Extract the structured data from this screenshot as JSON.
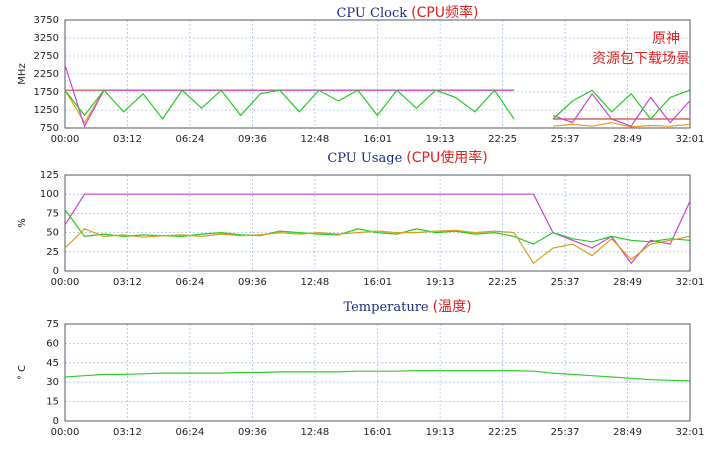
{
  "chart_data": [
    {
      "type": "line",
      "title": "CPU Clock",
      "title_note": "(CPU频率)",
      "y_label": "MHz",
      "annotations": [
        "原神",
        "资源包下载场景"
      ],
      "x": [
        0,
        1,
        2,
        3,
        4,
        5,
        6,
        7,
        8,
        9,
        10,
        11,
        12,
        13,
        14,
        15,
        16,
        17,
        18,
        19,
        20,
        21,
        22,
        23,
        24,
        25,
        26,
        27,
        28,
        29,
        30,
        31,
        32
      ],
      "xlim": [
        0,
        32.0167
      ],
      "xticks": [
        {
          "value": 0,
          "label": "00:00"
        },
        {
          "value": 3.2,
          "label": "03:12"
        },
        {
          "value": 6.4,
          "label": "06:24"
        },
        {
          "value": 9.6,
          "label": "09:36"
        },
        {
          "value": 12.8,
          "label": "12:48"
        },
        {
          "value": 16.0167,
          "label": "16:01"
        },
        {
          "value": 19.2167,
          "label": "19:13"
        },
        {
          "value": 22.4167,
          "label": "22:25"
        },
        {
          "value": 25.6167,
          "label": "25:37"
        },
        {
          "value": 28.8167,
          "label": "28:49"
        },
        {
          "value": 32.0167,
          "label": "32:01"
        }
      ],
      "ylim": [
        750,
        3750
      ],
      "yticks": [
        750,
        1250,
        1750,
        2250,
        2750,
        3250,
        3750
      ],
      "grid": true,
      "series": [
        {
          "color": "#c84a4a",
          "values": [
            1800,
            1800,
            1800,
            1800,
            1800,
            1800,
            1800,
            1800,
            1800,
            1800,
            1800,
            1800,
            1800,
            1800,
            1800,
            1800,
            1800,
            1800,
            1800,
            1800,
            1800,
            1800,
            1800,
            1800,
            null,
            1000,
            1000,
            1000,
            1000,
            1000,
            1000,
            1000,
            1000
          ]
        },
        {
          "color": "#e0a020",
          "values": [
            1800,
            900,
            1800,
            1800,
            1800,
            1800,
            1800,
            1800,
            1800,
            1800,
            1800,
            1800,
            1800,
            1800,
            1800,
            1800,
            1800,
            1800,
            1800,
            1800,
            1800,
            1800,
            1800,
            1800,
            null,
            800,
            850,
            800,
            900,
            780,
            820,
            800,
            850
          ]
        },
        {
          "color": "#cc44cc",
          "values": [
            2500,
            800,
            1800,
            1800,
            1800,
            1800,
            1800,
            1800,
            1800,
            1800,
            1800,
            1800,
            1800,
            1800,
            1800,
            1800,
            1800,
            1800,
            1800,
            1800,
            1800,
            1800,
            1800,
            1800,
            null,
            1100,
            900,
            1700,
            1000,
            800,
            1600,
            900,
            1500
          ]
        },
        {
          "color": "#22cc22",
          "values": [
            1800,
            1100,
            1800,
            1200,
            1700,
            1000,
            1800,
            1300,
            1800,
            1100,
            1700,
            1800,
            1200,
            1800,
            1500,
            1800,
            1100,
            1800,
            1300,
            1800,
            1600,
            1200,
            1800,
            1000,
            null,
            1000,
            1500,
            1800,
            1200,
            1700,
            1000,
            1600,
            1800
          ]
        }
      ]
    },
    {
      "type": "line",
      "title": "CPU Usage",
      "title_note": "(CPU使用率)",
      "y_label": "%",
      "x": [
        0,
        1,
        2,
        3,
        4,
        5,
        6,
        7,
        8,
        9,
        10,
        11,
        12,
        13,
        14,
        15,
        16,
        17,
        18,
        19,
        20,
        21,
        22,
        23,
        24,
        25,
        26,
        27,
        28,
        29,
        30,
        31,
        32
      ],
      "xlim": [
        0,
        32.0167
      ],
      "xticks": [
        {
          "value": 0,
          "label": "00:00"
        },
        {
          "value": 3.2,
          "label": "03:12"
        },
        {
          "value": 6.4,
          "label": "06:24"
        },
        {
          "value": 9.6,
          "label": "09:36"
        },
        {
          "value": 12.8,
          "label": "12:48"
        },
        {
          "value": 16.0167,
          "label": "16:01"
        },
        {
          "value": 19.2167,
          "label": "19:13"
        },
        {
          "value": 22.4167,
          "label": "22:25"
        },
        {
          "value": 25.6167,
          "label": "25:37"
        },
        {
          "value": 28.8167,
          "label": "28:49"
        },
        {
          "value": 32.0167,
          "label": "32:01"
        }
      ],
      "ylim": [
        0,
        125
      ],
      "yticks": [
        0,
        25,
        50,
        75,
        100,
        125
      ],
      "grid": true,
      "series": [
        {
          "color": "#cc44cc",
          "values": [
            60,
            100,
            100,
            100,
            100,
            100,
            100,
            100,
            100,
            100,
            100,
            100,
            100,
            100,
            100,
            100,
            100,
            100,
            100,
            100,
            100,
            100,
            100,
            100,
            100,
            50,
            40,
            30,
            45,
            10,
            40,
            35,
            90
          ]
        },
        {
          "color": "#22cc22",
          "values": [
            80,
            45,
            48,
            45,
            47,
            46,
            45,
            48,
            50,
            47,
            46,
            52,
            50,
            48,
            47,
            55,
            50,
            48,
            55,
            50,
            52,
            48,
            50,
            45,
            35,
            50,
            42,
            38,
            45,
            40,
            38,
            42,
            40
          ]
        },
        {
          "color": "#d4a017",
          "values": [
            30,
            55,
            45,
            47,
            44,
            46,
            47,
            45,
            48,
            46,
            47,
            50,
            48,
            50,
            48,
            50,
            52,
            50,
            50,
            52,
            53,
            50,
            52,
            50,
            10,
            30,
            35,
            20,
            42,
            15,
            35,
            40,
            45
          ]
        }
      ]
    },
    {
      "type": "line",
      "title": "Temperature",
      "title_note": "(温度)",
      "y_label": "° C",
      "x": [
        0,
        1,
        2,
        3,
        4,
        5,
        6,
        7,
        8,
        9,
        10,
        11,
        12,
        13,
        14,
        15,
        16,
        17,
        18,
        19,
        20,
        21,
        22,
        23,
        24,
        25,
        26,
        27,
        28,
        29,
        30,
        31,
        32
      ],
      "xlim": [
        0,
        32.0167
      ],
      "xticks": [
        {
          "value": 0,
          "label": "00:00"
        },
        {
          "value": 3.2,
          "label": "03:12"
        },
        {
          "value": 6.4,
          "label": "06:24"
        },
        {
          "value": 9.6,
          "label": "09:36"
        },
        {
          "value": 12.8,
          "label": "12:48"
        },
        {
          "value": 16.0167,
          "label": "16:01"
        },
        {
          "value": 19.2167,
          "label": "19:13"
        },
        {
          "value": 22.4167,
          "label": "22:25"
        },
        {
          "value": 25.6167,
          "label": "25:37"
        },
        {
          "value": 28.8167,
          "label": "28:49"
        },
        {
          "value": 32.0167,
          "label": "32:01"
        }
      ],
      "ylim": [
        0,
        75
      ],
      "yticks": [
        0,
        15,
        30,
        45,
        60,
        75
      ],
      "grid": true,
      "series": [
        {
          "color": "#33cc33",
          "values": [
            34,
            35,
            36,
            36,
            36.5,
            37,
            37,
            37,
            37,
            37.5,
            37.5,
            38,
            38,
            38,
            38,
            38.5,
            38.5,
            38.5,
            39,
            39,
            39,
            39,
            39,
            39,
            38.5,
            37,
            36,
            35,
            34,
            33,
            32,
            31.5,
            31
          ]
        }
      ]
    }
  ]
}
